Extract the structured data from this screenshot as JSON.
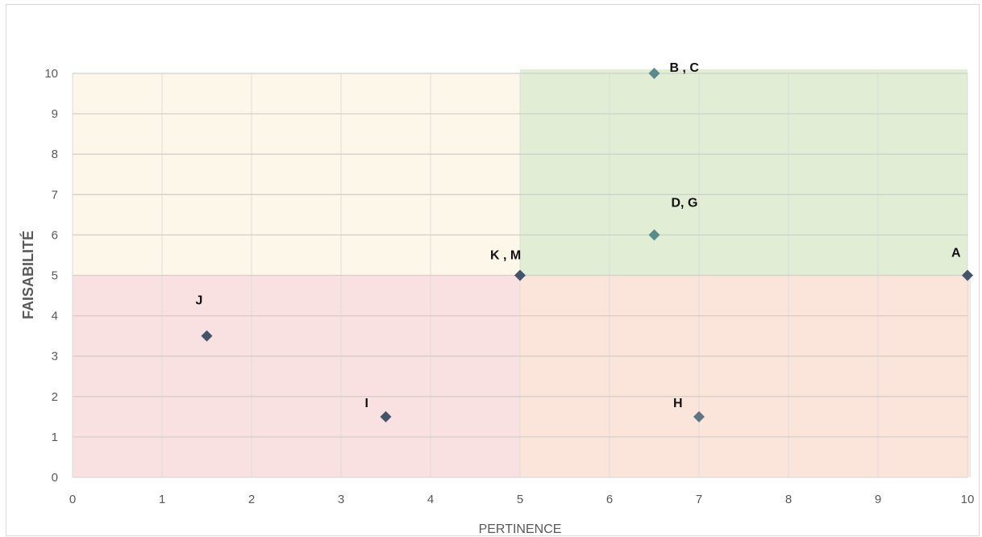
{
  "chart_data": {
    "type": "scatter",
    "title": "",
    "xlabel": "PERTINENCE",
    "ylabel": "FAISABILITÉ",
    "xlim": [
      0,
      10
    ],
    "ylim": [
      0,
      10
    ],
    "x_ticks": [
      "0",
      "1",
      "2",
      "3",
      "4",
      "5",
      "6",
      "7",
      "8",
      "9",
      "10"
    ],
    "y_ticks": [
      "0",
      "1",
      "2",
      "3",
      "4",
      "5",
      "6",
      "7",
      "8",
      "9",
      "10"
    ],
    "grid": true,
    "quadrants": [
      {
        "x": [
          0,
          5
        ],
        "y": [
          5,
          10
        ],
        "color": "#fdf7ea"
      },
      {
        "x": [
          5,
          10
        ],
        "y": [
          5,
          10
        ],
        "color": "#e1edd5"
      },
      {
        "x": [
          0,
          5
        ],
        "y": [
          0,
          5
        ],
        "color": "#f9e1e1"
      },
      {
        "x": [
          5,
          10
        ],
        "y": [
          0,
          5
        ],
        "color": "#fbe5da"
      }
    ],
    "points": [
      {
        "label": "B , C",
        "x": 6.5,
        "y": 10,
        "color": "#5b8a8a"
      },
      {
        "label": "D, G",
        "x": 6.5,
        "y": 6,
        "color": "#5b8a8a"
      },
      {
        "label": "K , M",
        "x": 5,
        "y": 5,
        "color": "#44546a"
      },
      {
        "label": "A",
        "x": 10,
        "y": 5,
        "color": "#44546a"
      },
      {
        "label": "J",
        "x": 1.5,
        "y": 3.5,
        "color": "#44546a"
      },
      {
        "label": "I",
        "x": 3.5,
        "y": 1.5,
        "color": "#44546a"
      },
      {
        "label": "H",
        "x": 7,
        "y": 1.5,
        "color": "#5f7585"
      }
    ]
  }
}
